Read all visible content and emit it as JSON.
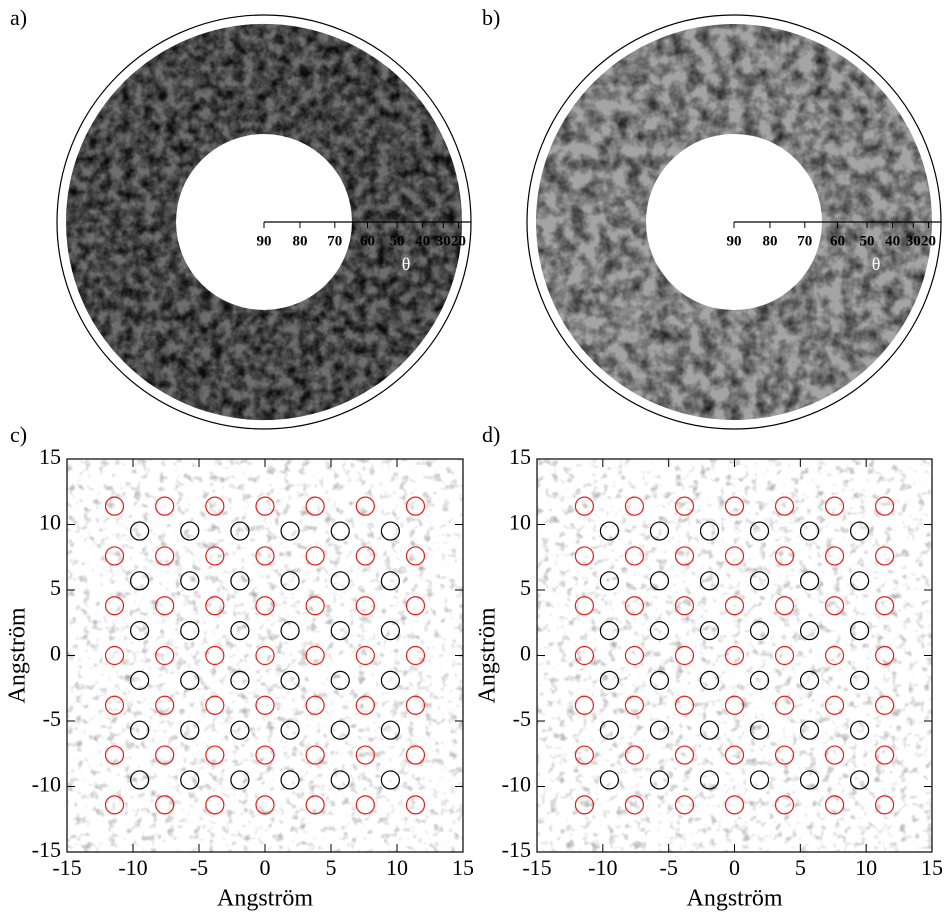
{
  "chart_data": [
    {
      "type": "polar",
      "label": "a)",
      "xlabel": "θ",
      "xlim": [
        90,
        0
      ],
      "xticks": [
        90,
        80,
        70,
        60,
        50,
        40,
        30,
        20
      ],
      "scale": "cosine",
      "shade": "dark"
    },
    {
      "type": "polar",
      "label": "b)",
      "xlabel": "θ",
      "xlim": [
        90,
        0
      ],
      "xticks": [
        90,
        80,
        70,
        60,
        50,
        40,
        30,
        20
      ],
      "scale": "cosine",
      "shade": "light"
    },
    {
      "type": "scatter",
      "label": "c)",
      "xlabel": "Angström",
      "ylabel": "Angström",
      "xlim": [
        -15,
        15
      ],
      "ylim": [
        -15,
        15
      ],
      "xticks": [
        -15,
        -10,
        -5,
        0,
        5,
        10,
        15
      ],
      "yticks": [
        -15,
        -10,
        -5,
        0,
        5,
        10,
        15
      ],
      "marker": "open-circle",
      "series": [
        {
          "color": "#e0201b",
          "x": [
            -11.4,
            -7.6,
            -3.8,
            0,
            3.8,
            7.6,
            11.4,
            -11.4,
            -7.6,
            -3.8,
            0,
            3.8,
            7.6,
            11.4,
            -11.4,
            -7.6,
            -3.8,
            0,
            3.8,
            7.6,
            11.4,
            -11.4,
            -7.6,
            -3.8,
            0,
            3.8,
            7.6,
            11.4,
            -11.4,
            -7.6,
            -3.8,
            0,
            3.8,
            7.6,
            11.4,
            -11.4,
            -7.6,
            -3.8,
            0,
            3.8,
            7.6,
            11.4,
            -11.4,
            -7.6,
            -3.8,
            0,
            3.8,
            7.6,
            11.4
          ],
          "y": [
            11.4,
            11.4,
            11.4,
            11.4,
            11.4,
            11.4,
            11.4,
            7.6,
            7.6,
            7.6,
            7.6,
            7.6,
            7.6,
            7.6,
            3.8,
            3.8,
            3.8,
            3.8,
            3.8,
            3.8,
            3.8,
            0,
            0,
            0,
            0,
            0,
            0,
            0,
            -3.8,
            -3.8,
            -3.8,
            -3.8,
            -3.8,
            -3.8,
            -3.8,
            -7.6,
            -7.6,
            -7.6,
            -7.6,
            -7.6,
            -7.6,
            -7.6,
            -11.4,
            -11.4,
            -11.4,
            -11.4,
            -11.4,
            -11.4,
            -11.4
          ]
        },
        {
          "color": "#000000",
          "x": [
            -9.5,
            -5.7,
            -1.9,
            1.9,
            5.7,
            9.5,
            -9.5,
            -5.7,
            -1.9,
            1.9,
            5.7,
            9.5,
            -9.5,
            -5.7,
            -1.9,
            1.9,
            5.7,
            9.5,
            -9.5,
            -5.7,
            -1.9,
            1.9,
            5.7,
            9.5,
            -9.5,
            -5.7,
            -1.9,
            1.9,
            5.7,
            9.5,
            -9.5,
            -5.7,
            -1.9,
            1.9,
            5.7,
            9.5
          ],
          "y": [
            9.5,
            9.5,
            9.5,
            9.5,
            9.5,
            9.5,
            5.7,
            5.7,
            5.7,
            5.7,
            5.7,
            5.7,
            1.9,
            1.9,
            1.9,
            1.9,
            1.9,
            1.9,
            -1.9,
            -1.9,
            -1.9,
            -1.9,
            -1.9,
            -1.9,
            -5.7,
            -5.7,
            -5.7,
            -5.7,
            -5.7,
            -5.7,
            -9.5,
            -9.5,
            -9.5,
            -9.5,
            -9.5,
            -9.5
          ]
        }
      ]
    },
    {
      "type": "scatter",
      "label": "d)",
      "xlabel": "Angström",
      "ylabel": "Angström",
      "xlim": [
        -15,
        15
      ],
      "ylim": [
        -15,
        15
      ],
      "xticks": [
        -15,
        -10,
        -5,
        0,
        5,
        10,
        15
      ],
      "yticks": [
        -15,
        -10,
        -5,
        0,
        5,
        10,
        15
      ],
      "marker": "open-circle",
      "series": [
        {
          "color": "#e0201b",
          "x": [
            -11.4,
            -7.6,
            -3.8,
            0,
            3.8,
            7.6,
            11.4,
            -11.4,
            -7.6,
            -3.8,
            0,
            3.8,
            7.6,
            11.4,
            -11.4,
            -7.6,
            -3.8,
            0,
            3.8,
            7.6,
            11.4,
            -11.4,
            -7.6,
            -3.8,
            0,
            3.8,
            7.6,
            11.4,
            -11.4,
            -7.6,
            -3.8,
            0,
            3.8,
            7.6,
            11.4,
            -11.4,
            -7.6,
            -3.8,
            0,
            3.8,
            7.6,
            11.4,
            -11.4,
            -7.6,
            -3.8,
            0,
            3.8,
            7.6,
            11.4
          ],
          "y": [
            11.4,
            11.4,
            11.4,
            11.4,
            11.4,
            11.4,
            11.4,
            7.6,
            7.6,
            7.6,
            7.6,
            7.6,
            7.6,
            7.6,
            3.8,
            3.8,
            3.8,
            3.8,
            3.8,
            3.8,
            3.8,
            0,
            0,
            0,
            0,
            0,
            0,
            0,
            -3.8,
            -3.8,
            -3.8,
            -3.8,
            -3.8,
            -3.8,
            -3.8,
            -7.6,
            -7.6,
            -7.6,
            -7.6,
            -7.6,
            -7.6,
            -7.6,
            -11.4,
            -11.4,
            -11.4,
            -11.4,
            -11.4,
            -11.4,
            -11.4
          ]
        },
        {
          "color": "#000000",
          "x": [
            -9.5,
            -5.7,
            -1.9,
            1.9,
            5.7,
            9.5,
            -9.5,
            -5.7,
            -1.9,
            1.9,
            5.7,
            9.5,
            -9.5,
            -5.7,
            -1.9,
            1.9,
            5.7,
            9.5,
            -9.5,
            -5.7,
            -1.9,
            1.9,
            5.7,
            9.5,
            -9.5,
            -5.7,
            -1.9,
            1.9,
            5.7,
            9.5,
            -9.5,
            -5.7,
            -1.9,
            1.9,
            5.7,
            9.5
          ],
          "y": [
            9.5,
            9.5,
            9.5,
            9.5,
            9.5,
            9.5,
            5.7,
            5.7,
            5.7,
            5.7,
            5.7,
            5.7,
            1.9,
            1.9,
            1.9,
            1.9,
            1.9,
            1.9,
            -1.9,
            -1.9,
            -1.9,
            -1.9,
            -1.9,
            -1.9,
            -5.7,
            -5.7,
            -5.7,
            -5.7,
            -5.7,
            -5.7,
            -9.5,
            -9.5,
            -9.5,
            -9.5,
            -9.5,
            -9.5
          ]
        }
      ]
    }
  ]
}
